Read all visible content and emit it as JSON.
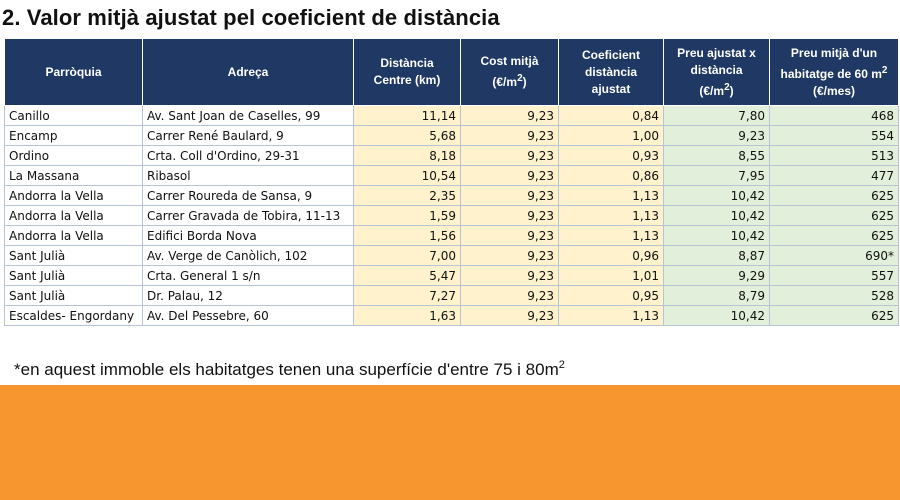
{
  "title": "2. Valor mitjà ajustat pel coeficient de distància",
  "table": {
    "headers": [
      {
        "line1": "Parròquia",
        "line2": ""
      },
      {
        "line1": "Adreça",
        "line2": ""
      },
      {
        "line1": "Distància",
        "line2": "Centre (km)"
      },
      {
        "line1": "Cost mitjà",
        "line2": "(€/m",
        "sup": "2",
        "tail": ")"
      },
      {
        "line1": "Coeficient",
        "line2": "distància",
        "line3": "ajustat"
      },
      {
        "line1": "Preu ajustat x",
        "line2": "distància",
        "line3": "(€/m",
        "sup": "2",
        "tail": ")"
      },
      {
        "line1": "Preu mitjà d'un",
        "line2": "habitatge de 60 m",
        "sup": "2",
        "line3": "(€/mes)"
      }
    ],
    "rows": [
      [
        "Canillo",
        "Av. Sant Joan de Caselles, 99",
        "11,14",
        "9,23",
        "0,84",
        "7,80",
        "468"
      ],
      [
        "Encamp",
        "Carrer René Baulard, 9",
        "5,68",
        "9,23",
        "1,00",
        "9,23",
        "554"
      ],
      [
        "Ordino",
        "Crta. Coll d'Ordino, 29-31",
        "8,18",
        "9,23",
        "0,93",
        "8,55",
        "513"
      ],
      [
        "La Massana",
        "Ribasol",
        "10,54",
        "9,23",
        "0,86",
        "7,95",
        "477"
      ],
      [
        "Andorra la Vella",
        "Carrer Roureda de Sansa, 9",
        "2,35",
        "9,23",
        "1,13",
        "10,42",
        "625"
      ],
      [
        "Andorra la Vella",
        "Carrer Gravada de Tobira, 11-13",
        "1,59",
        "9,23",
        "1,13",
        "10,42",
        "625"
      ],
      [
        "Andorra la Vella",
        "Edifici Borda Nova",
        "1,56",
        "9,23",
        "1,13",
        "10,42",
        "625"
      ],
      [
        "Sant Julià",
        "Av. Verge de Canòlich, 102",
        "7,00",
        "9,23",
        "0,96",
        "8,87",
        "690*"
      ],
      [
        "Sant Julià",
        "Crta. General 1 s/n",
        "5,47",
        "9,23",
        "1,01",
        "9,29",
        "557"
      ],
      [
        "Sant Julià",
        "Dr. Palau, 12",
        "7,27",
        "9,23",
        "0,95",
        "8,79",
        "528"
      ],
      [
        "Escaldes- Engordany",
        "Av. Del Pessebre, 60",
        "1,63",
        "9,23",
        "1,13",
        "10,42",
        "625"
      ]
    ]
  },
  "note": {
    "text": "*en aquest immoble els habitatges tenen una superfície d'entre 75 i 80m",
    "sup": "2"
  },
  "colors": {
    "header_bg": "#1f3864",
    "yellow_cells": "#fff2cc",
    "green_cells": "#e2efda",
    "footer_band": "#f7962e"
  }
}
